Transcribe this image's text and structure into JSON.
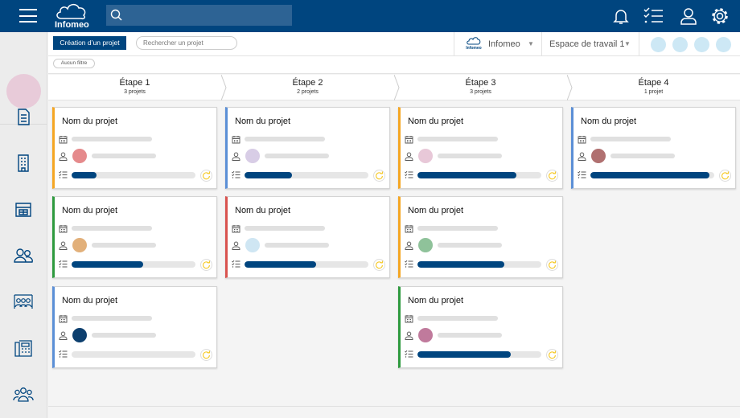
{
  "header": {
    "logo_text": "Infomeo",
    "search_placeholder": "",
    "icons": [
      "menu-icon",
      "bell-icon",
      "checklist-icon",
      "user-icon",
      "gear-icon"
    ]
  },
  "sidebar": {
    "items": [
      "document-icon",
      "building-icon",
      "calculator-icon",
      "users-icon",
      "meeting-icon",
      "phone-directory-icon",
      "team-icon"
    ]
  },
  "toolbar": {
    "create_label": "Création d’un projet",
    "search_placeholder": "Rechercher un projet",
    "org_label": "Infomeo",
    "org_logo_text": "Infomeo",
    "workspace_label": "Espace de travail 1",
    "filter_label": "Aucun filtre"
  },
  "stages": [
    {
      "name": "Étape 1",
      "count": "3 projets"
    },
    {
      "name": "Étape 2",
      "count": "2 projets"
    },
    {
      "name": "Étape 3",
      "count": "3 projets"
    },
    {
      "name": "Étape 4",
      "count": "1 projet"
    }
  ],
  "columns": [
    [
      {
        "title": "Nom du projet",
        "color": "#f5a623",
        "avatar": "#e58a8c",
        "progress": 0.2
      },
      {
        "title": "Nom du projet",
        "color": "#2e9a3e",
        "avatar": "#e2b07a",
        "progress": 0.58
      },
      {
        "title": "Nom du projet",
        "color": "#5b8fd6",
        "avatar": "#0d3f6e",
        "progress": 0
      }
    ],
    [
      {
        "title": "Nom du projet",
        "color": "#5b8fd6",
        "avatar": "#d8cde6",
        "progress": 0.38
      },
      {
        "title": "Nom du projet",
        "color": "#d9534f",
        "avatar": "#cfe6f3",
        "progress": 0.58
      }
    ],
    [
      {
        "title": "Nom du projet",
        "color": "#f5a623",
        "avatar": "#e8c8d8",
        "progress": 0.8
      },
      {
        "title": "Nom du projet",
        "color": "#f5a623",
        "avatar": "#8fc29a",
        "progress": 0.7
      },
      {
        "title": "Nom du projet",
        "color": "#2e9a3e",
        "avatar": "#c07a9c",
        "progress": 0.75
      }
    ],
    [
      {
        "title": "Nom du projet",
        "color": "#5b8fd6",
        "avatar": "#b07070",
        "progress": 0.96
      }
    ]
  ],
  "colors": {
    "brand": "#00457f",
    "refresh": "#f5c518"
  }
}
